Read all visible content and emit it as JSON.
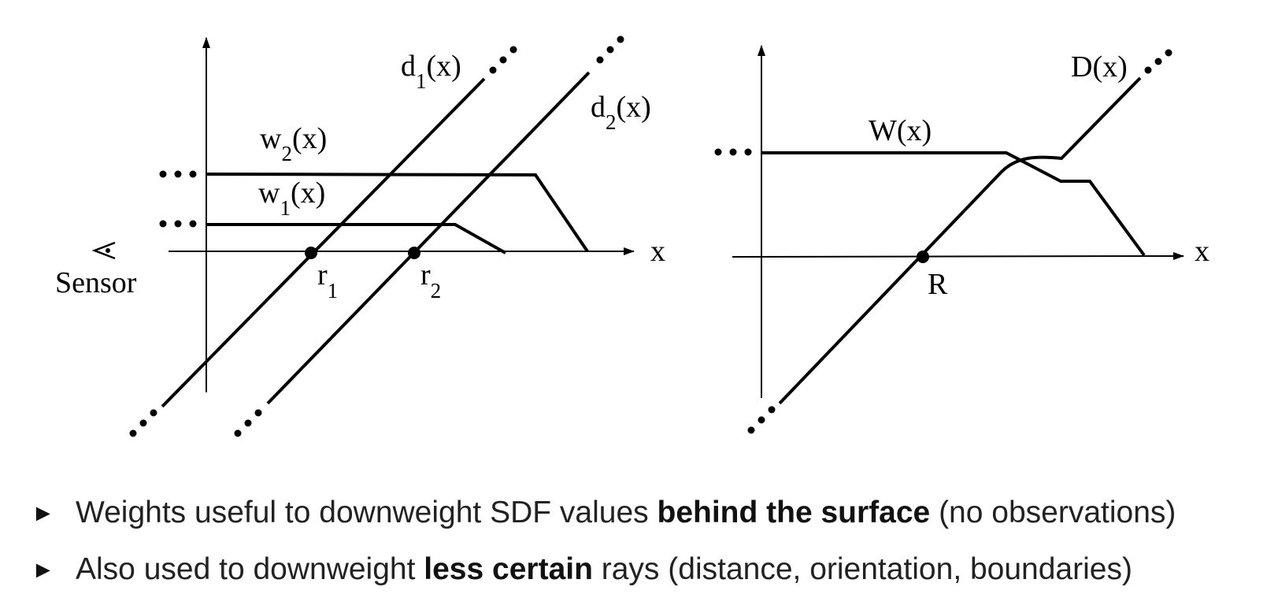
{
  "left_diagram": {
    "sensor_label": "Sensor",
    "x_axis_label": "x",
    "curves": {
      "d1": {
        "base": "d",
        "sub": "1",
        "arg": "(x)"
      },
      "d2": {
        "base": "d",
        "sub": "2",
        "arg": "(x)"
      },
      "w1": {
        "base": "w",
        "sub": "1",
        "arg": "(x)"
      },
      "w2": {
        "base": "w",
        "sub": "2",
        "arg": "(x)"
      }
    },
    "points": {
      "r1": {
        "base": "r",
        "sub": "1"
      },
      "r2": {
        "base": "r",
        "sub": "2"
      }
    }
  },
  "right_diagram": {
    "x_axis_label": "x",
    "curves": {
      "D": "D(x)",
      "W": "W(x)"
    },
    "point": "R"
  },
  "bullets": [
    {
      "pre": "Weights useful to downweight SDF values ",
      "bold": "behind the surface",
      "post": " (no observations)"
    },
    {
      "pre": "Also used to downweight ",
      "bold": "less certain",
      "post": " rays (distance, orientation, boundaries)"
    }
  ],
  "marker": "►"
}
